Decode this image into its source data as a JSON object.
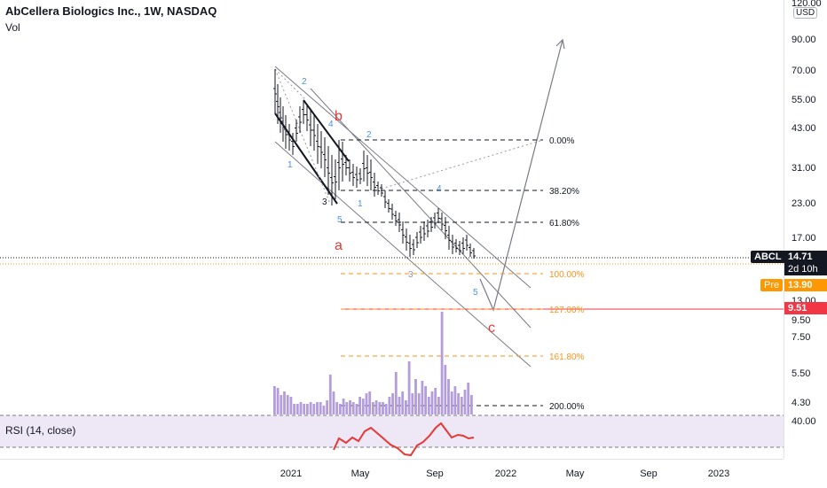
{
  "legend": {
    "title": "AbCellera Biologics Inc., 1W, NASDAQ",
    "volume_label": "Vol"
  },
  "price_axis": {
    "currency": "USD",
    "ticks": [
      "120.00",
      "90.00",
      "70.00",
      "55.00",
      "43.00",
      "31.00",
      "23.00",
      "17.00",
      "13.00",
      "9.50",
      "7.50",
      "5.50",
      "4.30"
    ]
  },
  "price_tags": {
    "symbol": "ABCL",
    "last_price": "14.71",
    "countdown": "2d 10h",
    "pre_label": "Pre",
    "pre_price": "13.90",
    "target_price": "9.51"
  },
  "fib_levels": [
    {
      "label": "0.00%",
      "color": "#131722"
    },
    {
      "label": "38.20%",
      "color": "#131722"
    },
    {
      "label": "61.80%",
      "color": "#131722"
    },
    {
      "label": "100.00%",
      "color": "#f7931a"
    },
    {
      "label": "127.00%",
      "color": "#f7931a"
    },
    {
      "label": "161.80%",
      "color": "#f7931a"
    },
    {
      "label": "200.00%",
      "color": "#131722"
    }
  ],
  "wave_labels": {
    "major": [
      "a",
      "b",
      "c"
    ],
    "minor": [
      "1",
      "2",
      "3",
      "4",
      "5",
      "1",
      "2",
      "3",
      "4",
      "5"
    ]
  },
  "rsi": {
    "label": "RSI (14, close)",
    "tick": "40.00"
  },
  "time_axis": [
    "2021",
    "May",
    "Sep",
    "2022",
    "May",
    "Sep",
    "2023"
  ],
  "colors": {
    "major_wave": "#e53935",
    "minor_wave": "#4a90e2",
    "fib_up": "#131722",
    "fib_down": "#f7931a",
    "target_line": "#f23645",
    "volume_bar": "#b39ddb",
    "rsi_line": "#e53935",
    "rsi_band": "#ede7f6",
    "last_price_bg": "#131722",
    "pre_bg": "#ff9800"
  }
}
